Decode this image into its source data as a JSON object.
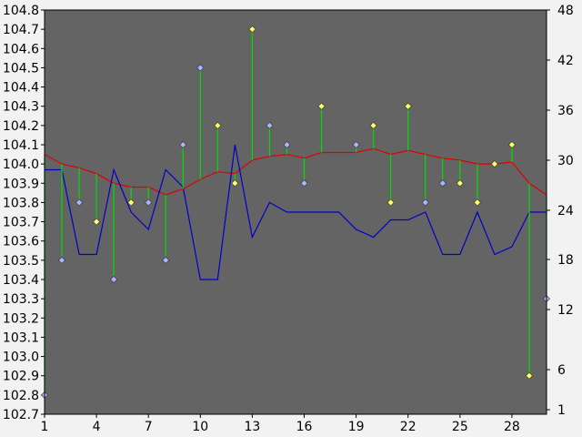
{
  "chart_data": {
    "type": "line",
    "title": "",
    "xlabel": "",
    "ylabel": "",
    "x": [
      1,
      2,
      3,
      4,
      5,
      6,
      7,
      8,
      9,
      10,
      11,
      12,
      13,
      14,
      15,
      16,
      17,
      18,
      19,
      20,
      21,
      22,
      23,
      24,
      25,
      26,
      27,
      28,
      29,
      30
    ],
    "x_tick_labels": [
      "1",
      "4",
      "7",
      "10",
      "13",
      "16",
      "19",
      "22",
      "25",
      "28"
    ],
    "x_tick_values": [
      1,
      4,
      7,
      10,
      13,
      16,
      19,
      22,
      25,
      28
    ],
    "xlim": [
      1,
      30
    ],
    "y_left_ticks": [
      "104.8",
      "104.7",
      "104.6",
      "104.5",
      "104.4",
      "104.3",
      "104.2",
      "104.1",
      "104.0",
      "103.9",
      "103.8",
      "103.7",
      "103.6",
      "103.5",
      "103.4",
      "103.3",
      "103.2",
      "103.1",
      "103.0",
      "102.9",
      "102.8",
      "102.7"
    ],
    "ylim_left": [
      102.7,
      104.8
    ],
    "y_right_ticks": [
      "48",
      "42",
      "36",
      "30",
      "24",
      "18",
      "12",
      "6",
      "1"
    ],
    "ylim_right": [
      1,
      48
    ],
    "plot_background": "#646464",
    "series": [
      {
        "kind": "stem-markers",
        "axis": "left",
        "stem_color": "#00dd00",
        "values": [
          102.8,
          103.5,
          103.8,
          103.7,
          103.4,
          103.8,
          103.8,
          103.5,
          104.1,
          104.5,
          104.2,
          103.9,
          104.7,
          104.2,
          104.1,
          103.9,
          104.3,
          null,
          104.1,
          104.2,
          103.8,
          104.3,
          103.8,
          103.9,
          103.9,
          103.8,
          104.0,
          104.1,
          102.9,
          103.3
        ],
        "marker_colors": [
          "#b0b0ff",
          "#b0b0ff",
          "#b0b0ff",
          "#ffff66",
          "#b0b0ff",
          "#ffff66",
          "#b0b0ff",
          "#b0b0ff",
          "#b0b0ff",
          "#b0b0ff",
          "#ffff66",
          "#ffff66",
          "#ffff66",
          "#b0b0ff",
          "#b0b0ff",
          "#b0b0ff",
          "#ffff66",
          null,
          "#b0b0ff",
          "#ffff66",
          "#ffff66",
          "#ffff66",
          "#b0b0ff",
          "#b0b0ff",
          "#ffff66",
          "#ffff66",
          "#ffff66",
          "#ffff66",
          "#ffff66",
          "#b0b0ff"
        ]
      },
      {
        "kind": "line",
        "axis": "left",
        "color": "#dd0000",
        "values": [
          104.05,
          104.0,
          103.98,
          103.95,
          103.9,
          103.88,
          103.88,
          103.84,
          103.87,
          103.92,
          103.96,
          103.95,
          104.02,
          104.04,
          104.05,
          104.03,
          104.06,
          104.06,
          104.06,
          104.08,
          104.05,
          104.07,
          104.05,
          104.03,
          104.02,
          104.0,
          104.0,
          104.01,
          103.9,
          103.84
        ]
      },
      {
        "kind": "line",
        "axis": "left",
        "color": "#0000cc",
        "values": [
          103.97,
          103.97,
          103.53,
          103.53,
          103.97,
          103.75,
          103.66,
          103.97,
          103.88,
          103.4,
          103.4,
          104.1,
          103.62,
          103.8,
          103.75,
          103.75,
          103.75,
          103.75,
          103.66,
          103.62,
          103.71,
          103.71,
          103.75,
          103.53,
          103.53,
          103.75,
          103.53,
          103.57,
          103.75,
          103.75
        ]
      }
    ]
  }
}
